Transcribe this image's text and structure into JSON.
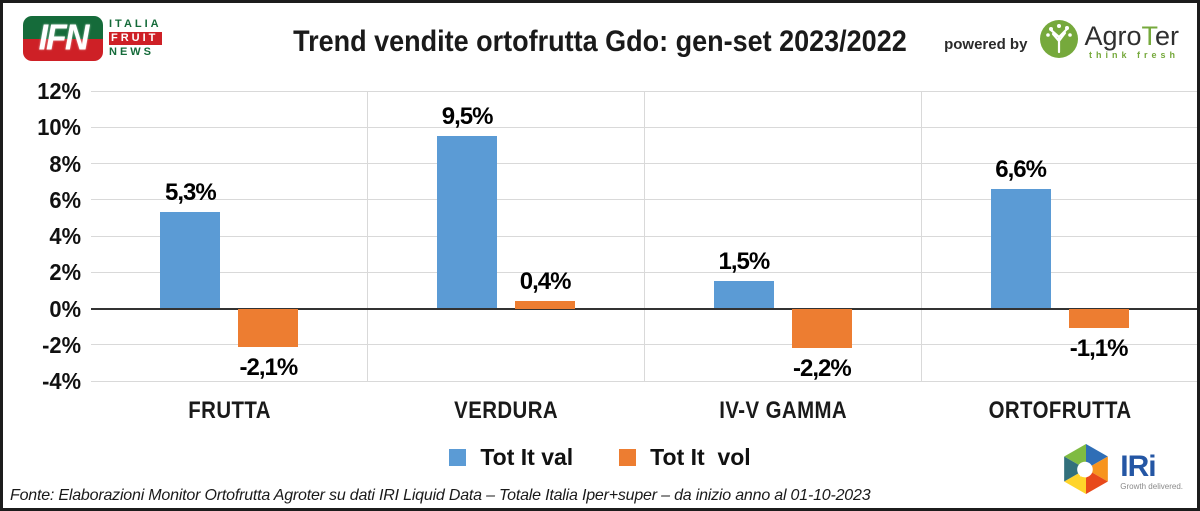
{
  "header": {
    "ifn_logo": {
      "acronym": "IFN",
      "line1": "ITALIA",
      "line2": "FRUIT",
      "line3": "NEWS"
    },
    "title": "Trend vendite ortofrutta Gdo: gen-set 2023/2022",
    "powered_by": "powered by",
    "agroter": {
      "agro": "Agro",
      "t": "T",
      "er": "er",
      "tagline": "think fresh"
    }
  },
  "chart_data": {
    "type": "bar",
    "title": "Trend vendite ortofrutta Gdo: gen-set 2023/2022",
    "categories": [
      "FRUTTA",
      "VERDURA",
      "IV-V GAMMA",
      "ORTOFRUTTA"
    ],
    "series": [
      {
        "name": "Tot It val",
        "color": "#5B9BD5",
        "values": [
          5.3,
          9.5,
          1.5,
          6.6
        ],
        "labels": [
          "5,3%",
          "9,5%",
          "1,5%",
          "6,6%"
        ]
      },
      {
        "name": "Tot It  vol",
        "color": "#ED7D31",
        "values": [
          -2.1,
          0.4,
          -2.2,
          -1.1
        ],
        "labels": [
          "-2,1%",
          "0,4%",
          "-2,2%",
          "-1,1%"
        ]
      }
    ],
    "y_axis": {
      "min": -4,
      "max": 12,
      "step": 2,
      "tick_labels": [
        "12%",
        "10%",
        "8%",
        "6%",
        "4%",
        "2%",
        "0%",
        "-2%",
        "-4%"
      ]
    },
    "grid": true,
    "legend_position": "bottom"
  },
  "footer": {
    "source": "Fonte: Elaborazioni Monitor Ortofrutta Agroter su dati IRI Liquid Data – Totale Italia Iper+super –  da inizio anno al 01-10-2023",
    "iri": {
      "name": "IRi",
      "tagline": "Growth delivered."
    }
  },
  "colors": {
    "grid": "#D9D9D9",
    "axis": "#333333",
    "ifn_green": "#156B3A",
    "ifn_red": "#CE2026",
    "agroter_green": "#76A93C",
    "iri_blue": "#2456A4"
  }
}
